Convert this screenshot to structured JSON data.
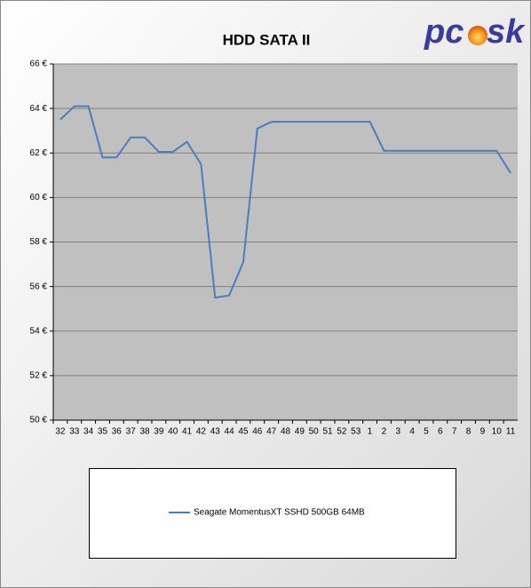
{
  "chart_data": {
    "type": "line",
    "title": "HDD SATA II",
    "categories": [
      "32",
      "33",
      "34",
      "35",
      "36",
      "37",
      "38",
      "39",
      "40",
      "41",
      "42",
      "43",
      "44",
      "45",
      "46",
      "47",
      "48",
      "49",
      "50",
      "51",
      "52",
      "53",
      "1",
      "2",
      "3",
      "4",
      "5",
      "6",
      "7",
      "8",
      "9",
      "10",
      "11"
    ],
    "series": [
      {
        "name": "Seagate MomentusXT SSHD 500GB 64MB",
        "color": "#4a7ebb",
        "values": [
          63.5,
          64.1,
          64.1,
          61.8,
          61.8,
          62.7,
          62.7,
          62.05,
          62.05,
          62.5,
          61.5,
          55.5,
          55.6,
          57.1,
          63.1,
          63.4,
          63.4,
          63.4,
          63.4,
          63.4,
          63.4,
          63.4,
          63.4,
          62.1,
          62.1,
          62.1,
          62.1,
          62.1,
          62.1,
          62.1,
          62.1,
          62.1,
          61.1
        ]
      }
    ],
    "ylim": [
      50,
      66
    ],
    "yticks": [
      {
        "value": 50,
        "label": "50 €"
      },
      {
        "value": 52,
        "label": "52 €"
      },
      {
        "value": 54,
        "label": "54 €"
      },
      {
        "value": 56,
        "label": "56 €"
      },
      {
        "value": 58,
        "label": "58 €"
      },
      {
        "value": 60,
        "label": "60 €"
      },
      {
        "value": 62,
        "label": "62 €"
      },
      {
        "value": 64,
        "label": "64 €"
      },
      {
        "value": 66,
        "label": "66 €"
      }
    ],
    "grid": true,
    "plot_background": "#c0c0c0"
  },
  "logo": [
    "pc",
    "sk"
  ]
}
